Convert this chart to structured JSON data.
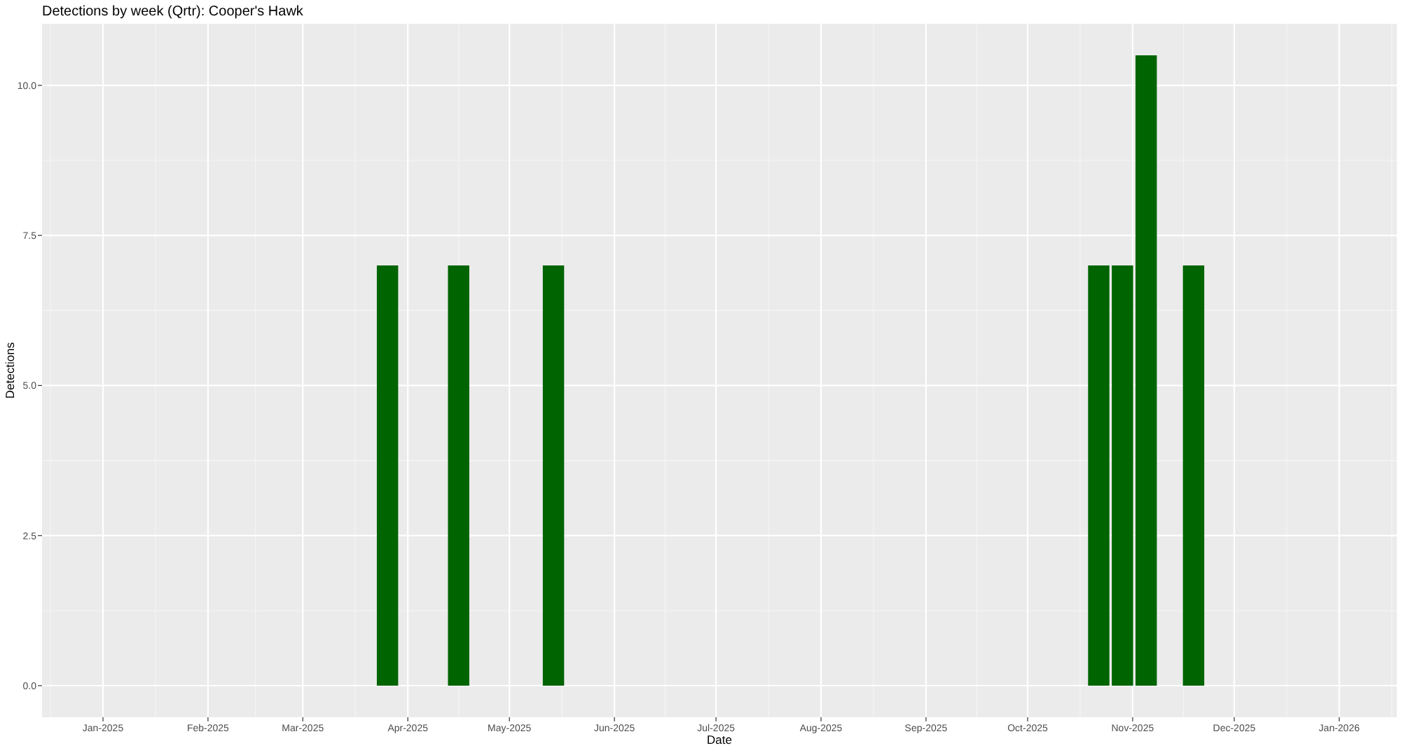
{
  "chart_data": {
    "type": "bar",
    "title": "Detections by week (Qrtr): Cooper's Hawk",
    "xlabel": "Date",
    "ylabel": "Detections",
    "x": [
      "2025-03-26",
      "2025-04-16",
      "2025-05-14",
      "2025-10-22",
      "2025-10-29",
      "2025-11-05",
      "2025-11-19"
    ],
    "values": [
      7,
      7,
      7,
      7,
      7,
      10.5,
      7
    ],
    "color": "#006400",
    "xlim": [
      "2024-12-14",
      "2026-01-18"
    ],
    "xticks": [
      {
        "value": "2025-01-01",
        "label": "Jan-2025"
      },
      {
        "value": "2025-02-01",
        "label": "Feb-2025"
      },
      {
        "value": "2025-03-01",
        "label": "Mar-2025"
      },
      {
        "value": "2025-04-01",
        "label": "Apr-2025"
      },
      {
        "value": "2025-05-01",
        "label": "May-2025"
      },
      {
        "value": "2025-06-01",
        "label": "Jun-2025"
      },
      {
        "value": "2025-07-01",
        "label": "Jul-2025"
      },
      {
        "value": "2025-08-01",
        "label": "Aug-2025"
      },
      {
        "value": "2025-09-01",
        "label": "Sep-2025"
      },
      {
        "value": "2025-10-01",
        "label": "Oct-2025"
      },
      {
        "value": "2025-11-01",
        "label": "Nov-2025"
      },
      {
        "value": "2025-12-01",
        "label": "Dec-2025"
      },
      {
        "value": "2026-01-01",
        "label": "Jan-2026"
      }
    ],
    "ylim": [
      -0.525,
      11.025
    ],
    "yticks": [
      {
        "value": 0,
        "label": "0.0"
      },
      {
        "value": 2.5,
        "label": "2.5"
      },
      {
        "value": 5,
        "label": "5.0"
      },
      {
        "value": 7.5,
        "label": "7.5"
      },
      {
        "value": 10,
        "label": "10.0"
      }
    ],
    "grid": true
  }
}
